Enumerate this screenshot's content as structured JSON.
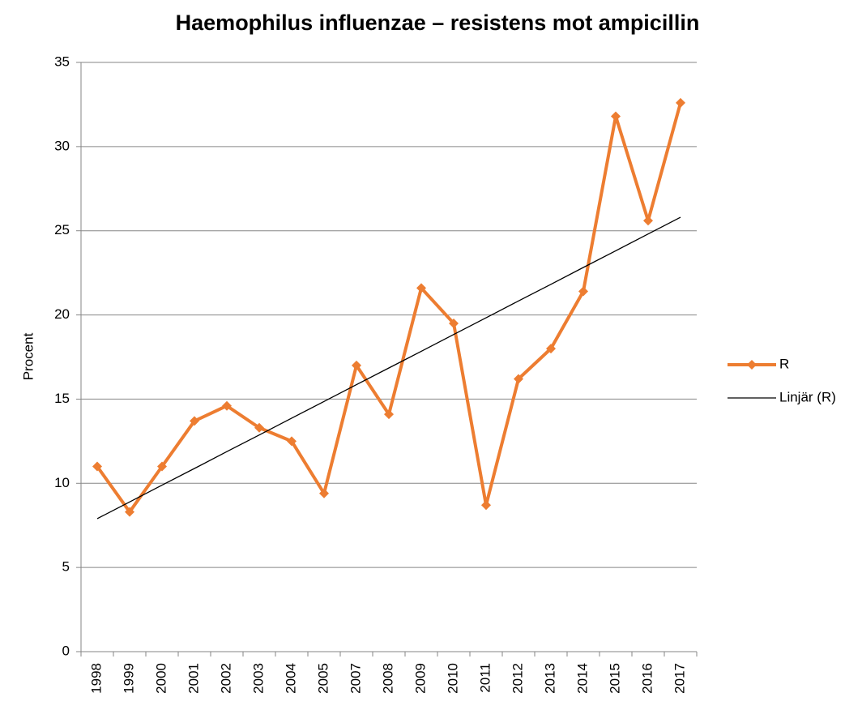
{
  "chart_data": {
    "type": "line",
    "title": "Haemophilus influenzae – resistens mot ampicillin",
    "y_label": "Procent",
    "categories": [
      "1998",
      "1999",
      "2000",
      "2001",
      "2002",
      "2003",
      "2004",
      "2005",
      "2007",
      "2008",
      "2009",
      "2010",
      "2011",
      "2012",
      "2013",
      "2014",
      "2015",
      "2016",
      "2017"
    ],
    "series": [
      {
        "name": "R",
        "color": "#ed7d31",
        "values": [
          11,
          8.3,
          11,
          13.7,
          14.6,
          13.3,
          12.5,
          9.4,
          17,
          14.1,
          21.6,
          19.5,
          8.7,
          16.2,
          18,
          21.4,
          31.8,
          25.6,
          32.6
        ]
      },
      {
        "name": "Linjär (R)",
        "color": "#000000",
        "values": [
          7.9,
          8.89,
          9.89,
          10.88,
          11.88,
          12.87,
          13.87,
          14.86,
          15.86,
          16.85,
          17.84,
          18.84,
          19.83,
          20.83,
          21.82,
          22.82,
          23.81,
          24.81,
          25.8
        ]
      }
    ],
    "ylim": [
      0,
      35
    ],
    "yticks": [
      0,
      5,
      10,
      15,
      20,
      25,
      30,
      35
    ],
    "grid": true,
    "legend": "right"
  }
}
